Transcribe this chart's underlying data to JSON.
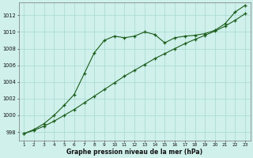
{
  "x": [
    1,
    2,
    3,
    4,
    5,
    6,
    7,
    8,
    9,
    10,
    11,
    12,
    13,
    14,
    15,
    16,
    17,
    18,
    19,
    20,
    21,
    22,
    23
  ],
  "line1": [
    997.8,
    998.3,
    999.0,
    1000.0,
    1001.2,
    1002.5,
    1005.0,
    1007.5,
    1009.0,
    1009.5,
    1009.3,
    1009.5,
    1010.0,
    1009.7,
    1008.7,
    1009.3,
    1009.5,
    1009.6,
    1009.8,
    1010.2,
    1011.0,
    1012.4,
    1013.2
  ],
  "line2": [
    997.8,
    998.2,
    998.7,
    999.3,
    1000.0,
    1000.7,
    1001.5,
    1002.3,
    1003.1,
    1003.9,
    1004.7,
    1005.4,
    1006.1,
    1006.8,
    1007.4,
    1008.0,
    1008.6,
    1009.1,
    1009.6,
    1010.1,
    1010.7,
    1011.4,
    1012.2
  ],
  "line_color": "#1a5c1a",
  "bg_color": "#cff0eb",
  "grid_color": "#a8d8d0",
  "ylabel_values": [
    998,
    1000,
    1002,
    1004,
    1006,
    1008,
    1010,
    1012
  ],
  "xlabel": "Graphe pression niveau de la mer (hPa)",
  "ylim": [
    997.0,
    1013.5
  ],
  "xlim": [
    0.5,
    23.5
  ]
}
